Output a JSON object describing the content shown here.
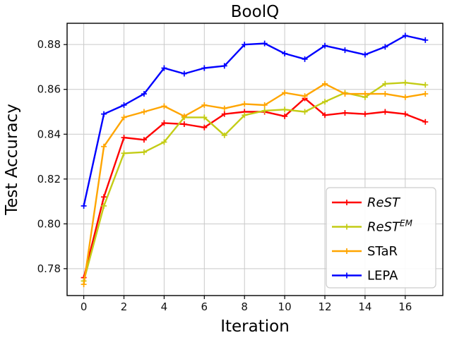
{
  "chart_data": {
    "type": "line",
    "title": "BoolQ",
    "xlabel": "Iteration",
    "ylabel": "Test Accuracy",
    "x": [
      0,
      1,
      2,
      3,
      4,
      5,
      6,
      7,
      8,
      9,
      10,
      11,
      12,
      13,
      14,
      15,
      16,
      17
    ],
    "xlim": [
      -0.83,
      17.87
    ],
    "ylim": [
      0.768,
      0.8895
    ],
    "xticks": [
      0,
      2,
      4,
      6,
      8,
      10,
      12,
      14,
      16
    ],
    "xtick_labels": [
      "0",
      "2",
      "4",
      "6",
      "8",
      "10",
      "12",
      "14",
      "16"
    ],
    "yticks": [
      0.78,
      0.8,
      0.82,
      0.84,
      0.86,
      0.88
    ],
    "ytick_labels": [
      "0.78",
      "0.80",
      "0.82",
      "0.84",
      "0.86",
      "0.88"
    ],
    "grid": true,
    "grid_color": "#c9c9c9",
    "legend_position": "lower right",
    "marker": "plus",
    "series": [
      {
        "name": "ReST",
        "name_sup": "",
        "italic": true,
        "color": "#ff0000",
        "values": [
          0.776,
          0.812,
          0.8385,
          0.8375,
          0.845,
          0.8445,
          0.843,
          0.849,
          0.85,
          0.85,
          0.848,
          0.856,
          0.8485,
          0.8495,
          0.849,
          0.85,
          0.849,
          0.8455
        ]
      },
      {
        "name": "ReST",
        "name_sup": "EM",
        "italic": true,
        "color": "#c3cc15",
        "values": [
          0.7745,
          0.808,
          0.8315,
          0.832,
          0.8365,
          0.8475,
          0.8475,
          0.8395,
          0.8485,
          0.8505,
          0.851,
          0.85,
          0.8545,
          0.8585,
          0.8565,
          0.8625,
          0.863,
          0.862
        ]
      },
      {
        "name": "STaR",
        "name_sup": "",
        "italic": false,
        "color": "#ffa500",
        "values": [
          0.773,
          0.8345,
          0.8475,
          0.85,
          0.8525,
          0.848,
          0.853,
          0.8515,
          0.8535,
          0.853,
          0.8585,
          0.857,
          0.8625,
          0.858,
          0.858,
          0.858,
          0.8565,
          0.858
        ]
      },
      {
        "name": "LEPA",
        "name_sup": "",
        "italic": false,
        "color": "#0000ff",
        "values": [
          0.808,
          0.849,
          0.853,
          0.858,
          0.8695,
          0.867,
          0.8695,
          0.8705,
          0.88,
          0.8805,
          0.876,
          0.8735,
          0.8795,
          0.8775,
          0.8755,
          0.879,
          0.884,
          0.882
        ]
      }
    ]
  }
}
